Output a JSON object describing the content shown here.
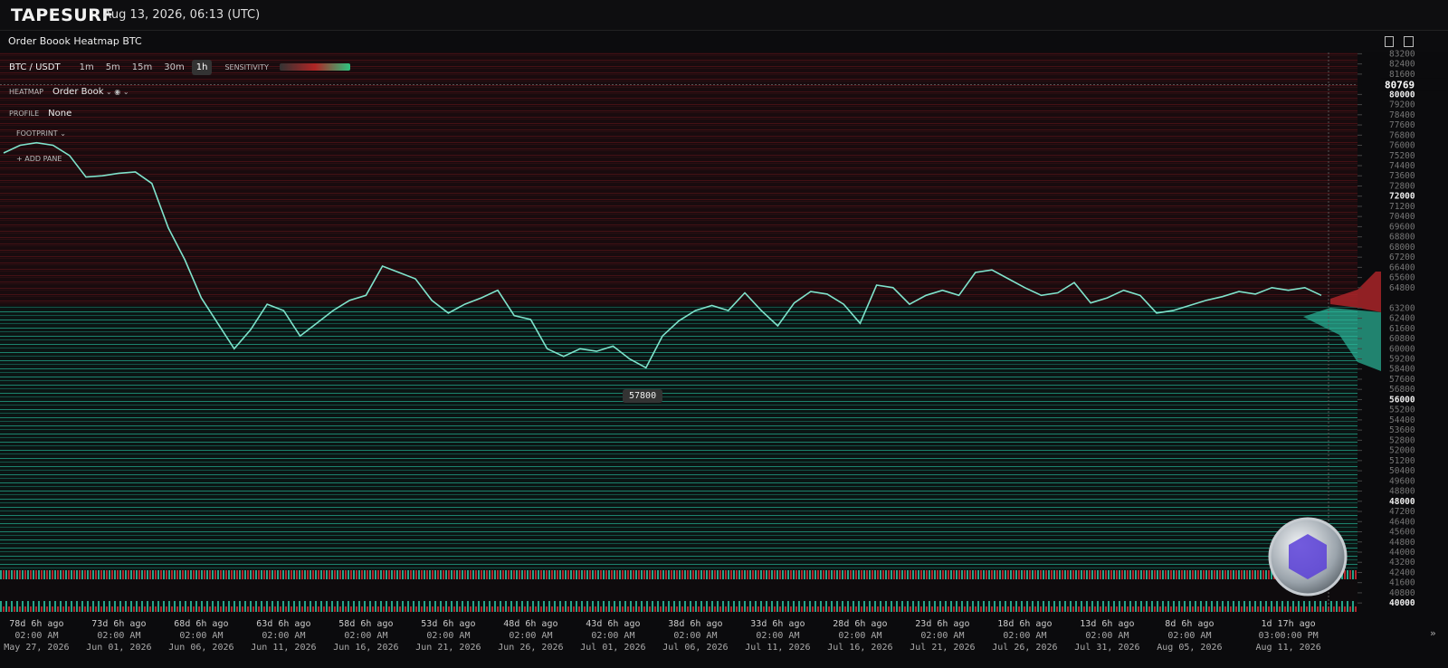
{
  "header": {
    "logo": "TAPESURF",
    "datetime": "Aug 13, 2026, 06:13 (UTC)"
  },
  "panel": {
    "title": "Order Boook Heatmap BTC"
  },
  "toolbar": {
    "symbol": "BTC / USDT",
    "timeframes": [
      "1m",
      "5m",
      "15m",
      "30m",
      "1h"
    ],
    "active_timeframe": "1h",
    "sensitivity_label": "SENSITIVITY"
  },
  "settings": {
    "heatmap_label": "HEATMAP",
    "heatmap_value": "Order Book",
    "profile_label": "PROFILE",
    "profile_value": "None",
    "footprint_label": "FOOTPRINT",
    "add_pane": "ADD PANE"
  },
  "chart_data": {
    "type": "line",
    "color": "#7fe3cc",
    "categories": [
      null,
      null,
      "78d 6h ago",
      null,
      null,
      null,
      null,
      "73d 6h ago",
      null,
      null,
      null,
      null,
      "68d 6h ago",
      null,
      null,
      null,
      null,
      "63d 6h ago",
      null,
      null,
      null,
      null,
      "58d 6h ago",
      null,
      null,
      null,
      null,
      "53d 6h ago",
      null,
      null,
      null,
      null,
      "48d 6h ago",
      null,
      null,
      null,
      null,
      "43d 6h ago",
      null,
      null,
      null,
      null,
      "38d 6h ago",
      null,
      null,
      null,
      null,
      "33d 6h ago",
      null,
      null,
      null,
      null,
      "28d 6h ago",
      null,
      null,
      null,
      null,
      "23d 6h ago",
      null,
      null,
      null,
      null,
      "18d 6h ago",
      null,
      null,
      null,
      null,
      "13d 6h ago",
      null,
      null,
      null,
      null,
      "8d 6h ago",
      null,
      null,
      null,
      null,
      null,
      "1d 17h ago",
      null,
      null
    ],
    "category_times": [
      null,
      null,
      "02:00 AM",
      null,
      null,
      null,
      null,
      "02:00 AM",
      null,
      null,
      null,
      null,
      "02:00 AM",
      null,
      null,
      null,
      null,
      "02:00 AM",
      null,
      null,
      null,
      null,
      "02:00 AM",
      null,
      null,
      null,
      null,
      "02:00 AM",
      null,
      null,
      null,
      null,
      "02:00 AM",
      null,
      null,
      null,
      null,
      "02:00 AM",
      null,
      null,
      null,
      null,
      "02:00 AM",
      null,
      null,
      null,
      null,
      "02:00 AM",
      null,
      null,
      null,
      null,
      "02:00 AM",
      null,
      null,
      null,
      null,
      "02:00 AM",
      null,
      null,
      null,
      null,
      "02:00 AM",
      null,
      null,
      null,
      null,
      "02:00 AM",
      null,
      null,
      null,
      null,
      "02:00 AM",
      null,
      null,
      null,
      null,
      null,
      "03:00:00 PM",
      null,
      null
    ],
    "category_dates": [
      null,
      null,
      "May 27, 2026",
      null,
      null,
      null,
      null,
      "Jun 01, 2026",
      null,
      null,
      null,
      null,
      "Jun 06, 2026",
      null,
      null,
      null,
      null,
      "Jun 11, 2026",
      null,
      null,
      null,
      null,
      "Jun 16, 2026",
      null,
      null,
      null,
      null,
      "Jun 21, 2026",
      null,
      null,
      null,
      null,
      "Jun 26, 2026",
      null,
      null,
      null,
      null,
      "Jul 01, 2026",
      null,
      null,
      null,
      null,
      "Jul 06, 2026",
      null,
      null,
      null,
      null,
      "Jul 11, 2026",
      null,
      null,
      null,
      null,
      "Jul 16, 2026",
      null,
      null,
      null,
      null,
      "Jul 21, 2026",
      null,
      null,
      null,
      null,
      "Jul 26, 2026",
      null,
      null,
      null,
      null,
      "Jul 31, 2026",
      null,
      null,
      null,
      null,
      "Aug 05, 2026",
      null,
      null,
      null,
      null,
      null,
      "Aug 11, 2026",
      null,
      null
    ],
    "values": [
      75400,
      76000,
      76200,
      76000,
      75200,
      73500,
      73600,
      73800,
      73900,
      73000,
      69500,
      67000,
      64000,
      62000,
      60000,
      61500,
      63500,
      63000,
      61000,
      62000,
      63000,
      63800,
      64200,
      66500,
      66000,
      65500,
      63800,
      62800,
      63500,
      64000,
      64600,
      62600,
      62300,
      60000,
      59400,
      60000,
      59800,
      60200,
      59200,
      58500,
      61000,
      62200,
      63000,
      63400,
      63000,
      64400,
      63000,
      61800,
      63600,
      64500,
      64300,
      63500,
      62000,
      65000,
      64800,
      63500,
      64200,
      64600,
      64200,
      66000,
      66200,
      65500,
      64800,
      64200,
      64400,
      65200,
      63600,
      64000,
      64600,
      64200,
      62800,
      63000,
      63400,
      63800,
      64100,
      64500,
      64300,
      64800,
      64600,
      64800,
      64200
    ],
    "low_label": 57800,
    "crosshair_price": 80769,
    "ylim": [
      39300,
      83300
    ],
    "yticks": [
      83200,
      82400,
      81600,
      80000,
      79200,
      78400,
      77600,
      76800,
      76000,
      75200,
      74400,
      73600,
      72800,
      72000,
      71200,
      70400,
      69600,
      68800,
      68000,
      67200,
      66400,
      65600,
      64800,
      63200,
      62400,
      61600,
      60800,
      60000,
      59200,
      58400,
      57600,
      56800,
      56000,
      55200,
      54400,
      53600,
      52800,
      52000,
      51200,
      50400,
      49600,
      48800,
      48000,
      47200,
      46400,
      45600,
      44800,
      44000,
      43200,
      42400,
      41600,
      40800,
      40000
    ]
  }
}
